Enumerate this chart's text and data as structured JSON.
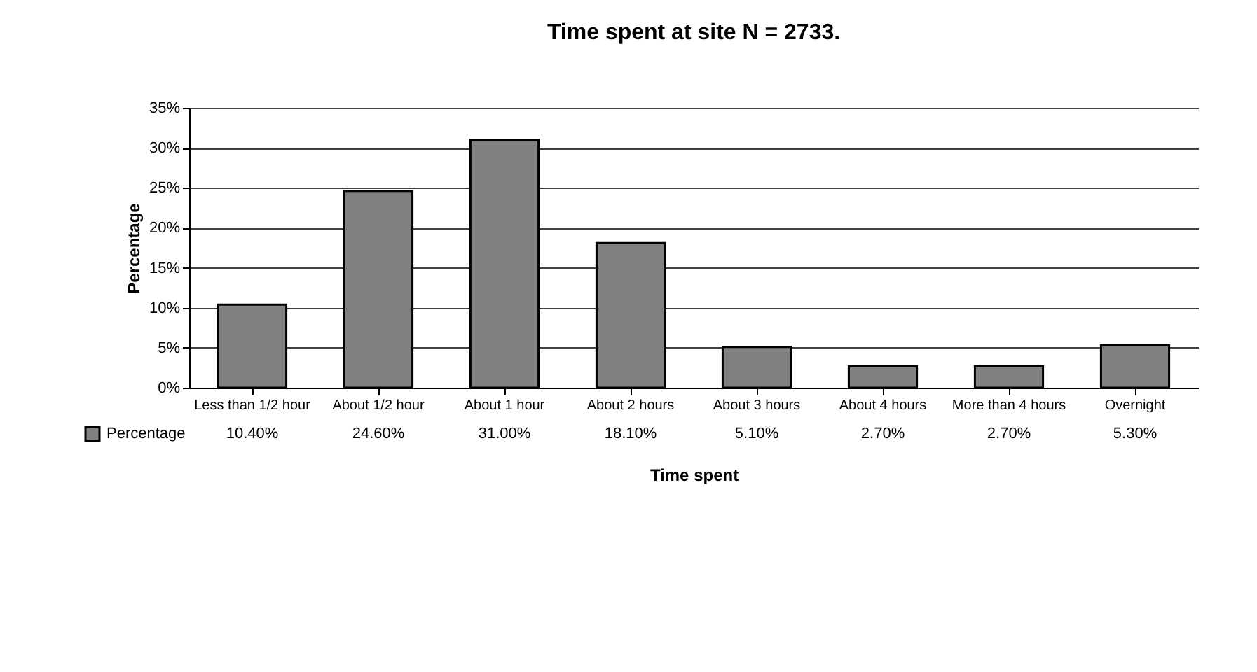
{
  "chart_data": {
    "type": "bar",
    "title": "Time spent at site     N = 2733.",
    "xlabel": "Time spent",
    "ylabel": "Percentage",
    "categories": [
      "Less than 1/2 hour",
      "About 1/2 hour",
      "About 1 hour",
      "About 2 hours",
      "About 3 hours",
      "About 4 hours",
      "More than 4 hours",
      "Overnight"
    ],
    "series": [
      {
        "name": "Percentage",
        "color": "#808080",
        "values": [
          10.4,
          24.6,
          31.0,
          18.1,
          5.1,
          2.7,
          2.7,
          5.3
        ],
        "value_labels": [
          "10.40%",
          "24.60%",
          "31.00%",
          "18.10%",
          "5.10%",
          "2.70%",
          "2.70%",
          "5.30%"
        ]
      }
    ],
    "ylim": [
      0,
      35
    ],
    "yticks": [
      {
        "value": 0,
        "label": "0%"
      },
      {
        "value": 5,
        "label": "5%"
      },
      {
        "value": 10,
        "label": "10%"
      },
      {
        "value": 15,
        "label": "15%"
      },
      {
        "value": 20,
        "label": "20%"
      },
      {
        "value": 25,
        "label": "25%"
      },
      {
        "value": 30,
        "label": "30%"
      },
      {
        "value": 35,
        "label": "35%"
      }
    ],
    "grid": "y",
    "legend": "bottom"
  }
}
